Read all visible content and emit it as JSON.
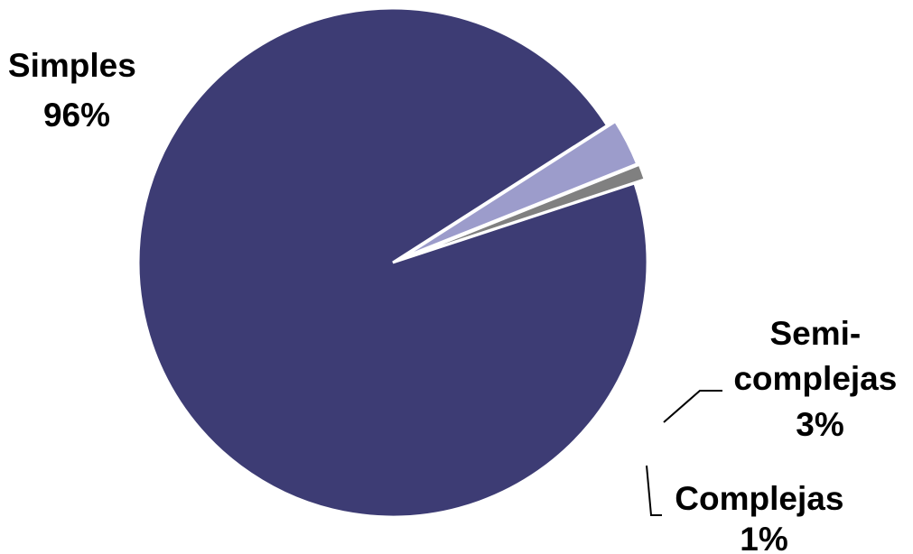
{
  "chart_data": {
    "type": "pie",
    "slices": [
      {
        "label": "Simples",
        "value": 96,
        "value_label": "96%",
        "color": "#3d3c74"
      },
      {
        "label": "Complejas",
        "value": 1,
        "value_label": "1%",
        "color": "#808080"
      },
      {
        "label_lines": [
          "Semi-",
          "complejas"
        ],
        "value": 3,
        "value_label": "3%",
        "color": "#9c9ccb"
      }
    ],
    "legend": "none",
    "exploded": [
      "Complejas",
      "Semi-complejas"
    ]
  }
}
